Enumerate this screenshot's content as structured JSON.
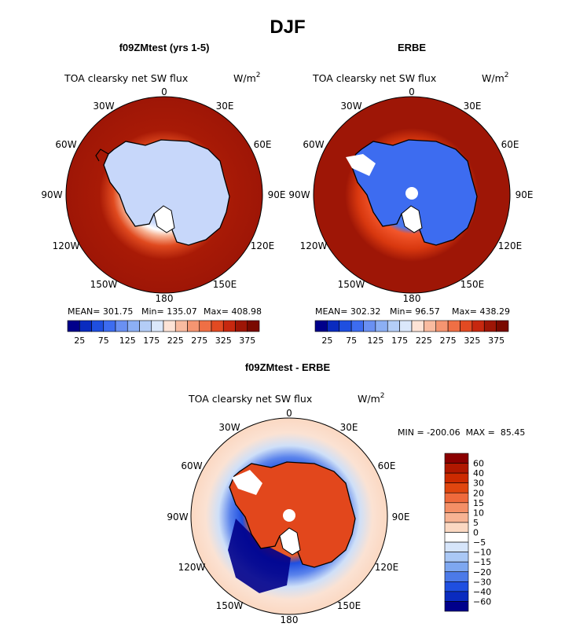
{
  "figure": {
    "title": "DJF"
  },
  "chart_data": [
    {
      "type": "heatmap",
      "projection": "south-polar-stereographic",
      "title": "f09ZMtest (yrs 1-5)",
      "field_label": "TOA clearsky net SW flux",
      "units_label": "W/m",
      "units_exponent": "2",
      "longitude_labels": [
        "0",
        "30E",
        "60E",
        "90E",
        "120E",
        "150E",
        "180",
        "150W",
        "120W",
        "90W",
        "60W",
        "30W"
      ],
      "stats": {
        "mean_label": "MEAN= 301.75",
        "min_label": "Min= 135.07",
        "max_label": "Max= 408.98",
        "mean": 301.75,
        "min": 135.07,
        "max": 408.98
      },
      "colorbar": {
        "ticks": [
          "25",
          "75",
          "125",
          "175",
          "225",
          "275",
          "325",
          "375"
        ],
        "levels": [
          25,
          50,
          75,
          100,
          125,
          150,
          175,
          200,
          225,
          250,
          275,
          300,
          325,
          350,
          375
        ],
        "colors": [
          "#00008b",
          "#0a2bbf",
          "#1f4fe0",
          "#3d6cf0",
          "#6a90f2",
          "#8caff4",
          "#b4cdf7",
          "#dbe8fb",
          "#fde3d6",
          "#f9bba0",
          "#f59571",
          "#ef6f45",
          "#e24a22",
          "#c7280f",
          "#9e1606",
          "#7a0a00"
        ]
      }
    },
    {
      "type": "heatmap",
      "projection": "south-polar-stereographic",
      "title": "ERBE",
      "field_label": "TOA clearsky net SW flux",
      "units_label": "W/m",
      "units_exponent": "2",
      "longitude_labels": [
        "0",
        "30E",
        "60E",
        "90E",
        "120E",
        "150E",
        "180",
        "150W",
        "120W",
        "90W",
        "60W",
        "30W"
      ],
      "stats": {
        "mean_label": "MEAN= 302.32",
        "min_label": "Min= 96.57",
        "max_label": "Max= 438.29",
        "mean": 302.32,
        "min": 96.57,
        "max": 438.29
      },
      "colorbar": {
        "ticks": [
          "25",
          "75",
          "125",
          "175",
          "225",
          "275",
          "325",
          "375"
        ],
        "levels": [
          25,
          50,
          75,
          100,
          125,
          150,
          175,
          200,
          225,
          250,
          275,
          300,
          325,
          350,
          375
        ],
        "colors": [
          "#00008b",
          "#0a2bbf",
          "#1f4fe0",
          "#3d6cf0",
          "#6a90f2",
          "#8caff4",
          "#b4cdf7",
          "#dbe8fb",
          "#fde3d6",
          "#f9bba0",
          "#f59571",
          "#ef6f45",
          "#e24a22",
          "#c7280f",
          "#9e1606",
          "#7a0a00"
        ]
      }
    },
    {
      "type": "heatmap",
      "projection": "south-polar-stereographic",
      "title": "f09ZMtest - ERBE",
      "field_label": "TOA clearsky net SW flux",
      "units_label": "W/m",
      "units_exponent": "2",
      "longitude_labels": [
        "0",
        "30E",
        "60E",
        "90E",
        "120E",
        "150E",
        "180",
        "150W",
        "120W",
        "90W",
        "60W",
        "30W"
      ],
      "stats": {
        "minmax_label": "MIN = -200.06  MAX =  85.45",
        "min": -200.06,
        "max": 85.45
      },
      "colorbar": {
        "orientation": "vertical",
        "ticks": [
          "60",
          "40",
          "30",
          "20",
          "15",
          "10",
          "5",
          "0",
          "-5",
          "-10",
          "-15",
          "-20",
          "-30",
          "-40",
          "-60"
        ],
        "colors": [
          "#8b0000",
          "#b01800",
          "#cc2a00",
          "#e0460f",
          "#ef6a3c",
          "#f48f66",
          "#f7b393",
          "#fbd8c2",
          "#ffffff",
          "#d6e5fa",
          "#aac8f5",
          "#7ea7f0",
          "#4c7ae8",
          "#1f4fe0",
          "#0a2bbf",
          "#00008b"
        ]
      }
    }
  ]
}
